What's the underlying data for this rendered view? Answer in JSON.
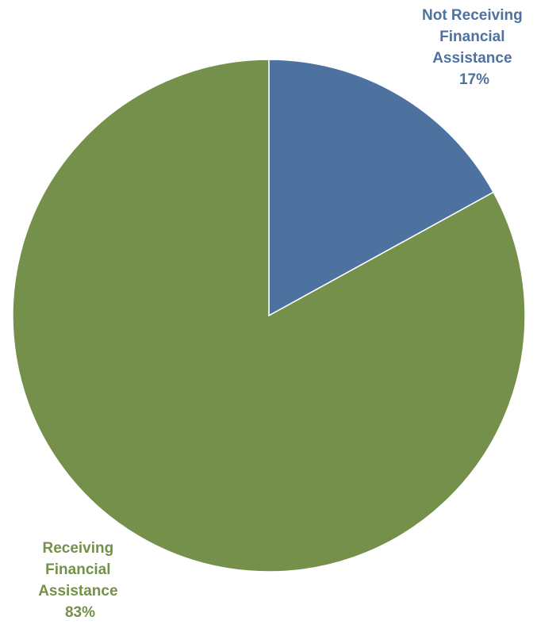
{
  "chart_data": {
    "type": "pie",
    "title": "",
    "slices": [
      {
        "label_lines": [
          "Not Receiving",
          "Financial",
          "Assistance"
        ],
        "value": 17,
        "value_label": "17%",
        "color": "#4e72a0"
      },
      {
        "label_lines": [
          "Receiving",
          "Financial",
          "Assistance"
        ],
        "value": 83,
        "value_label": "83%",
        "color": "#74904a"
      }
    ],
    "start_angle": "12 o'clock",
    "direction": "clockwise",
    "legend": "none",
    "label_colors": {
      "Not Receiving Financial Assistance": "#4e72a0",
      "Receiving Financial Assistance": "#74904a"
    }
  }
}
